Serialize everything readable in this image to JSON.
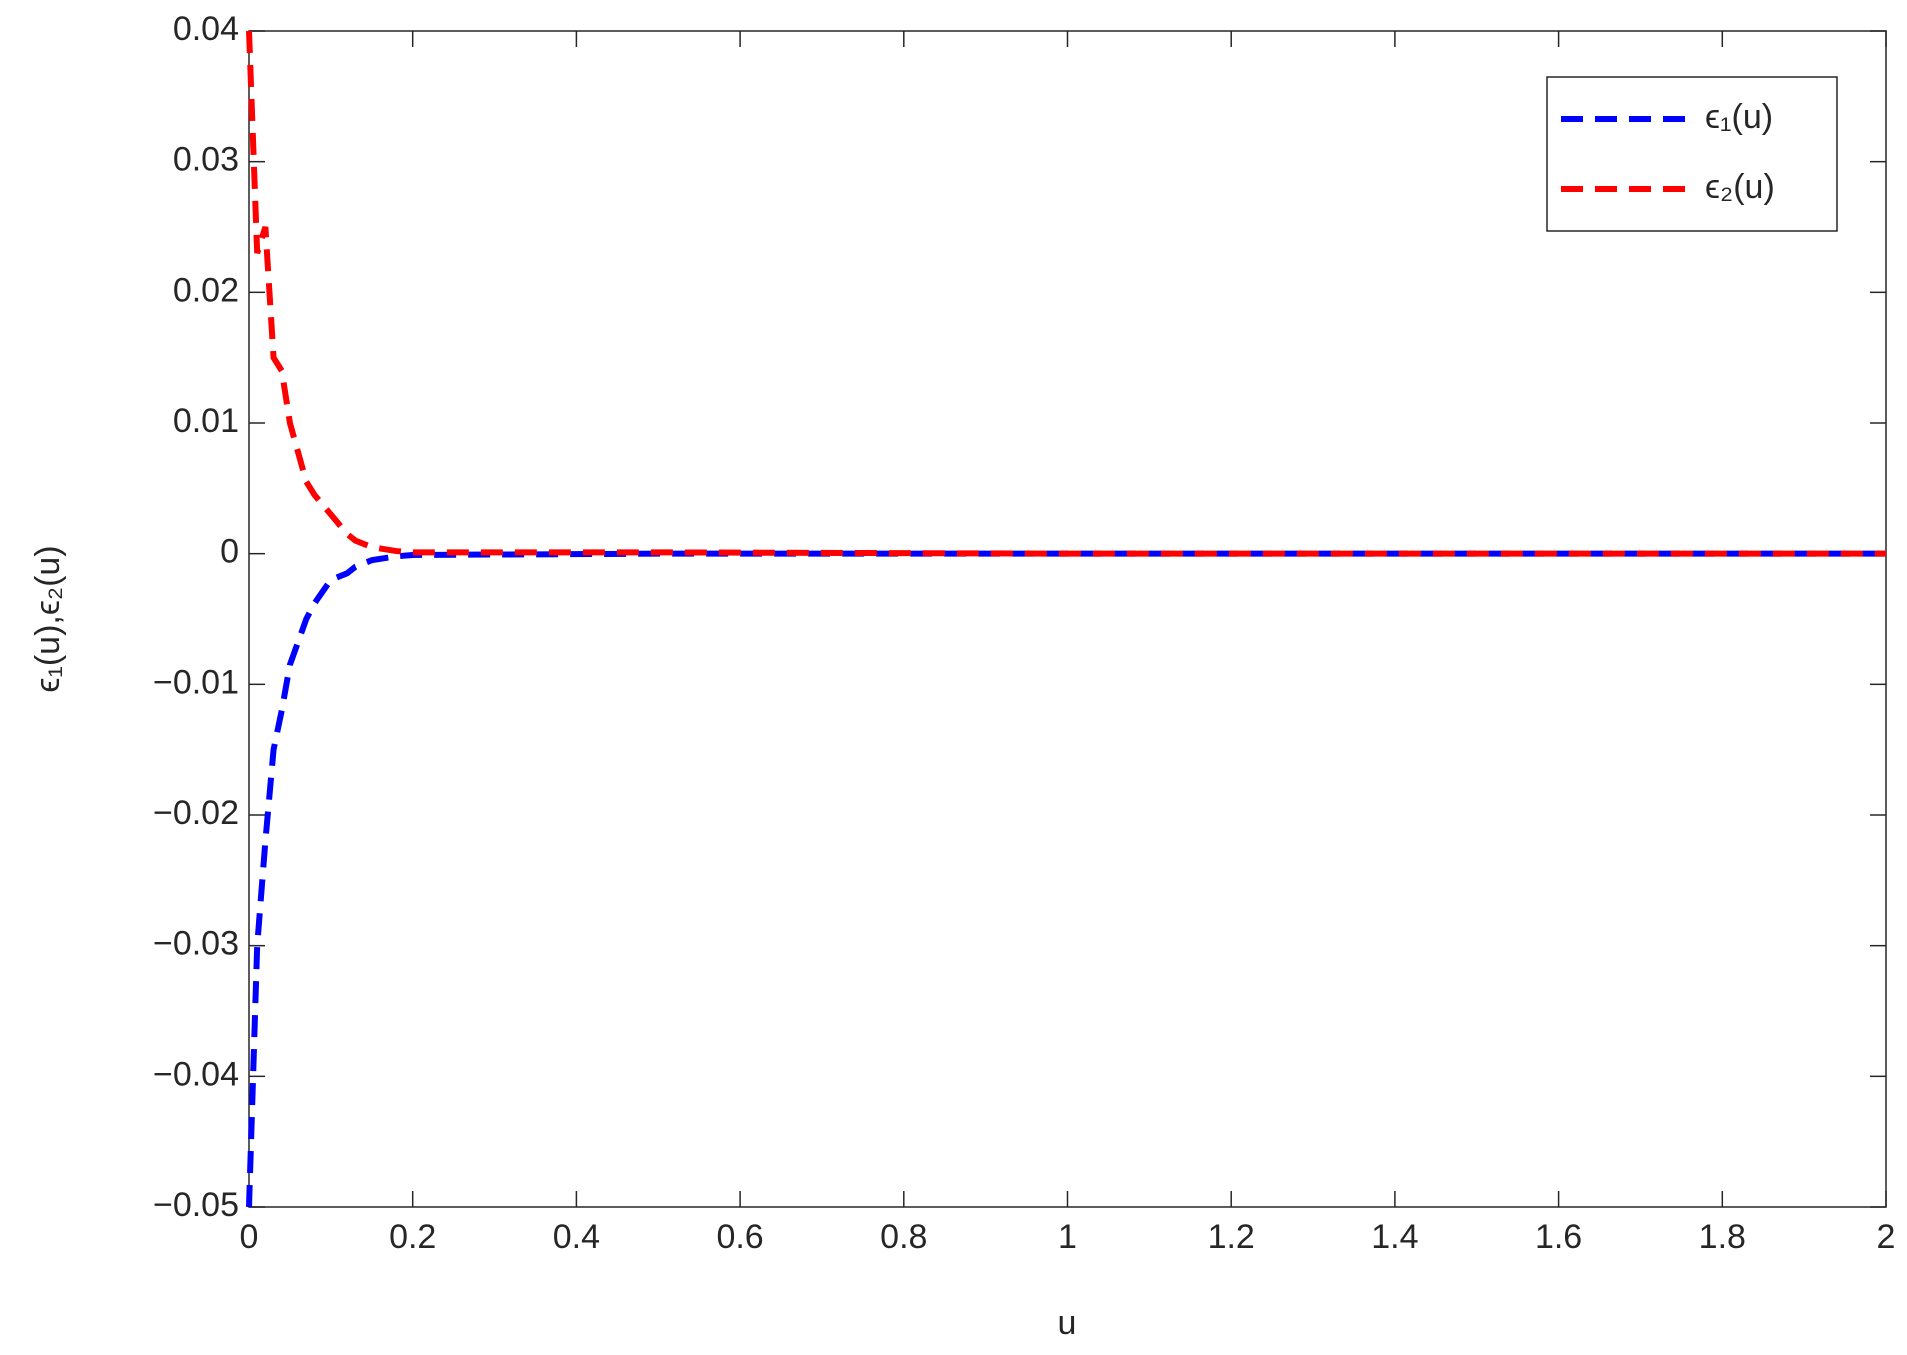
{
  "chart_data": {
    "type": "line",
    "xlabel": "u",
    "ylabel": "ϵ₁(u),ϵ₂(u)",
    "x": [
      0,
      0.01,
      0.02,
      0.03,
      0.04,
      0.05,
      0.07,
      0.08,
      0.1,
      0.12,
      0.13,
      0.15,
      0.18,
      0.2,
      0.5,
      1,
      1.5,
      2
    ],
    "series": [
      {
        "name": "ϵ₁(u)",
        "color": "#0000ff",
        "values": [
          -0.05,
          -0.03,
          -0.022,
          -0.015,
          -0.012,
          -0.0085,
          -0.005,
          -0.0038,
          -0.002,
          -0.0015,
          -0.001,
          -0.0005,
          -0.0002,
          -0.0001,
          0,
          0,
          0,
          0
        ]
      },
      {
        "name": "ϵ₂(u)",
        "color": "#ff0000",
        "values": [
          0.04,
          0.023,
          0.025,
          0.015,
          0.014,
          0.01,
          0.0055,
          0.0045,
          0.003,
          0.0015,
          0.001,
          0.0005,
          0.0002,
          0.0001,
          0.0001,
          0,
          0,
          0
        ]
      }
    ],
    "xlim": [
      0,
      2
    ],
    "xticks": [
      0,
      0.2,
      0.4,
      0.6,
      0.8,
      1,
      1.2,
      1.4,
      1.6,
      1.8,
      2
    ],
    "ylim": [
      -0.05,
      0.04
    ],
    "yticks": [
      {
        "value": -0.05,
        "label": "−0.05"
      },
      {
        "value": -0.04,
        "label": "−0.04"
      },
      {
        "value": -0.03,
        "label": "−0.03"
      },
      {
        "value": -0.02,
        "label": "−0.02"
      },
      {
        "value": -0.01,
        "label": "−0.01"
      },
      0,
      0.01,
      0.02,
      0.03,
      0.04
    ],
    "legend": "upper right",
    "line_style": "dashed"
  }
}
